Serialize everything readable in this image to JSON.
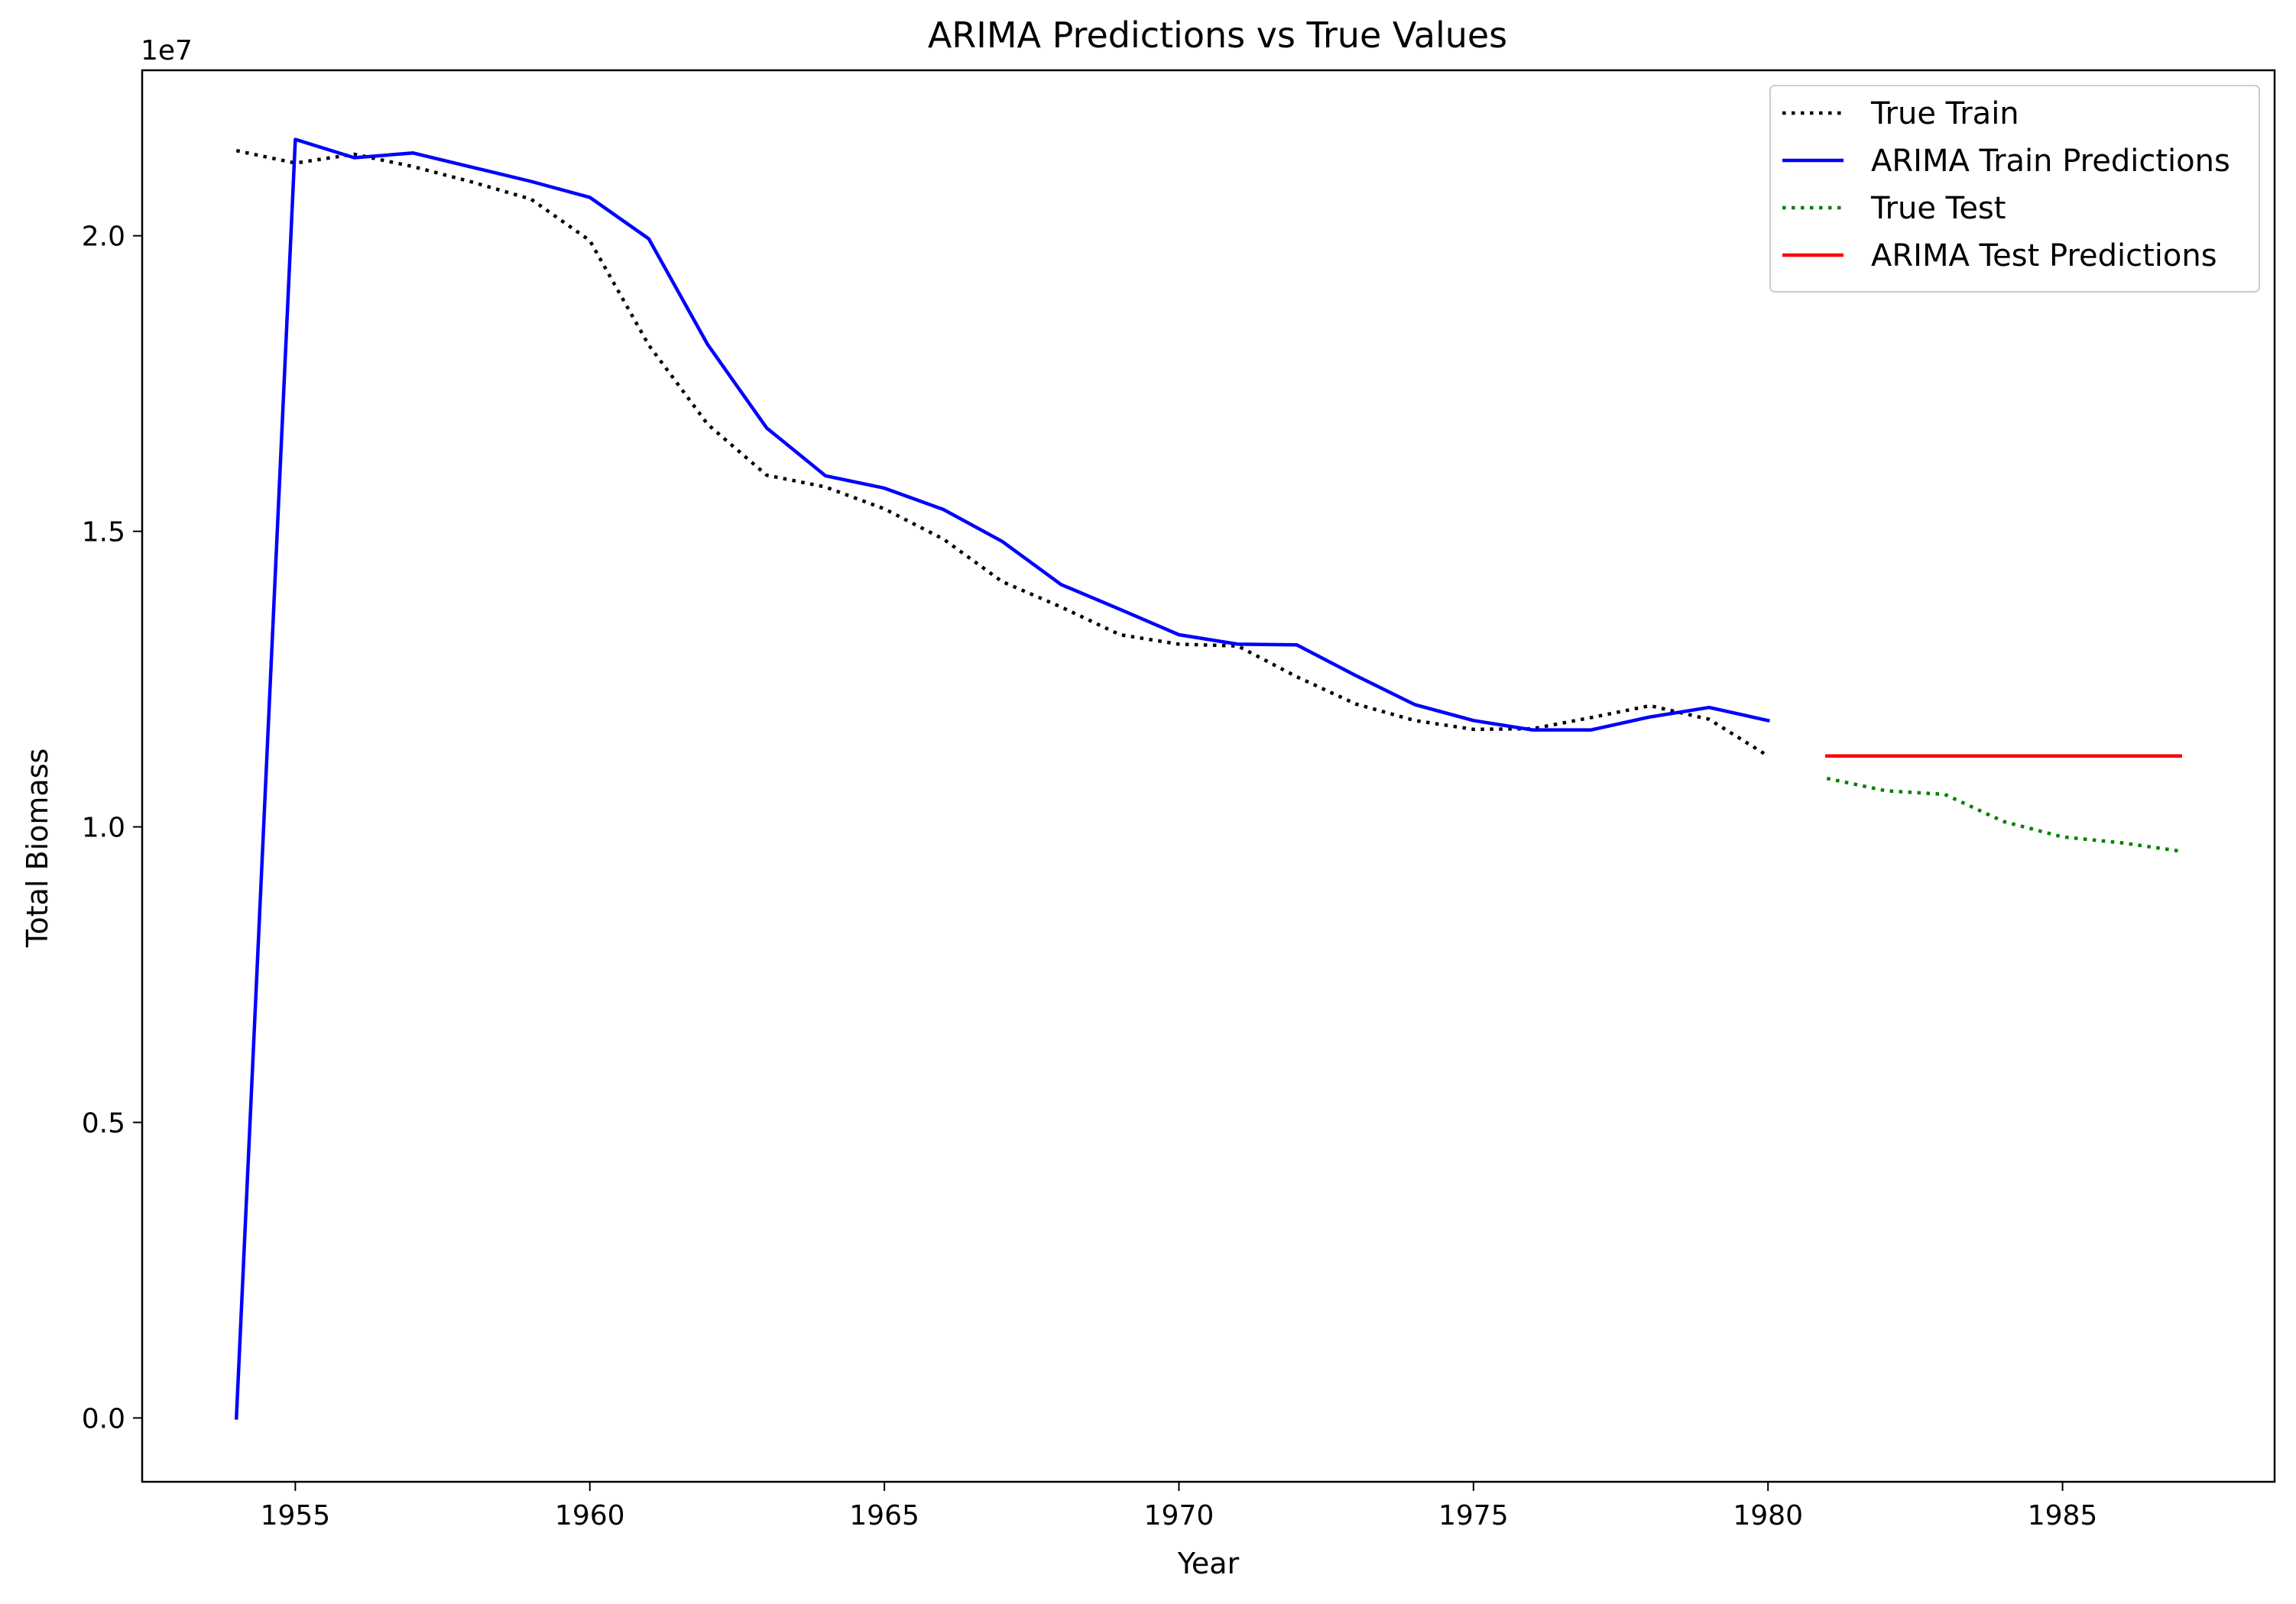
{
  "chart_data": {
    "type": "line",
    "title": "ARIMA Predictions vs True Values",
    "xlabel": "Year",
    "ylabel": "Total Biomass",
    "y_offset_label": "1e7",
    "xlim": [
      1952.4,
      1988.6
    ],
    "ylim": [
      -1080000,
      22800000
    ],
    "x_ticks": [
      1955,
      1960,
      1965,
      1970,
      1975,
      1980,
      1985
    ],
    "y_ticks": [
      0,
      5000000,
      10000000,
      15000000,
      20000000
    ],
    "y_tick_labels": [
      "0.0",
      "0.5",
      "1.0",
      "1.5",
      "2.0"
    ],
    "grid": false,
    "legend_placement": "top-right",
    "series": [
      {
        "name": "True Train",
        "color": "#000000",
        "style": "dotted",
        "x": [
          1954,
          1955,
          1956,
          1957,
          1958,
          1959,
          1960,
          1961,
          1962,
          1963,
          1964,
          1965,
          1966,
          1967,
          1968,
          1969,
          1970,
          1971,
          1972,
          1973,
          1974,
          1975,
          1976,
          1977,
          1978,
          1979,
          1980
        ],
        "y": [
          21440000,
          21230000,
          21380000,
          21170000,
          20910000,
          20620000,
          19920000,
          18150000,
          16810000,
          15950000,
          15750000,
          15380000,
          14870000,
          14150000,
          13720000,
          13250000,
          13090000,
          13060000,
          12540000,
          12080000,
          11800000,
          11650000,
          11660000,
          11850000,
          12050000,
          11820000,
          11200000
        ]
      },
      {
        "name": "ARIMA Train Predictions",
        "color": "#0000ff",
        "style": "solid",
        "x": [
          1954,
          1955,
          1956,
          1957,
          1958,
          1959,
          1960,
          1961,
          1962,
          1963,
          1964,
          1965,
          1966,
          1967,
          1968,
          1969,
          1970,
          1971,
          1972,
          1973,
          1974,
          1975,
          1976,
          1977,
          1978,
          1979,
          1980
        ],
        "y": [
          0,
          21630000,
          21320000,
          21400000,
          21160000,
          20920000,
          20650000,
          19950000,
          18160000,
          16750000,
          15940000,
          15730000,
          15370000,
          14830000,
          14100000,
          13680000,
          13250000,
          13090000,
          13080000,
          12560000,
          12070000,
          11800000,
          11640000,
          11640000,
          11860000,
          12020000,
          11800000
        ]
      },
      {
        "name": "True Test",
        "color": "#008000",
        "style": "dotted",
        "x": [
          1981,
          1982,
          1983,
          1984,
          1985,
          1986,
          1987
        ],
        "y": [
          10820000,
          10610000,
          10550000,
          10090000,
          9830000,
          9730000,
          9590000
        ]
      },
      {
        "name": "ARIMA Test Predictions",
        "color": "#ff0000",
        "style": "solid",
        "x": [
          1981,
          1982,
          1983,
          1984,
          1985,
          1986,
          1987
        ],
        "y": [
          11200000,
          11200000,
          11200000,
          11200000,
          11200000,
          11200000,
          11200000
        ]
      }
    ]
  }
}
